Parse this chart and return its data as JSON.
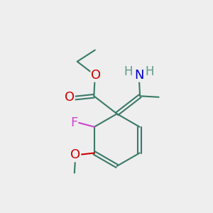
{
  "bg_color": "#eeeeee",
  "bond_color": "#3a7a68",
  "bond_lw": 1.5,
  "atom_colors": {
    "O": "#cc0000",
    "F": "#cc44cc",
    "N": "#0000cc",
    "H": "#5a9a88",
    "C": "#3a7a68"
  },
  "font_size_atom": 13,
  "font_size_small": 10
}
